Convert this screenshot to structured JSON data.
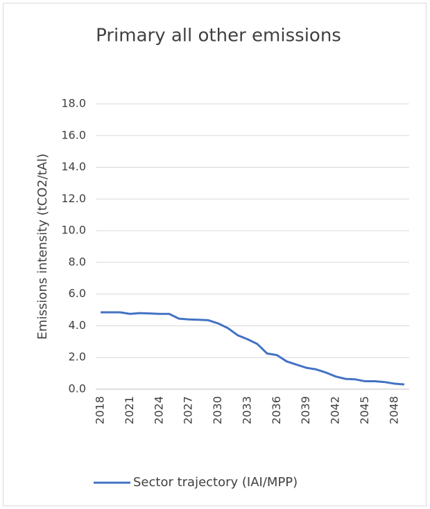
{
  "chart_data": {
    "type": "line",
    "title": "Primary all other emissions",
    "y_label": "Emissions intensity (tCO2/tAl)",
    "categories": [
      "2018",
      null,
      null,
      "2021",
      null,
      null,
      "2024",
      null,
      null,
      "2027",
      null,
      null,
      "2030",
      null,
      null,
      "2033",
      null,
      null,
      "2036",
      null,
      null,
      "2039",
      null,
      null,
      "2042",
      null,
      null,
      "2045",
      null,
      null,
      "2048",
      null
    ],
    "series": [
      {
        "name": "Sector trajectory (IAI/MPP)",
        "color": "#4472c4",
        "values": [
          4.85,
          4.85,
          4.85,
          4.75,
          4.8,
          4.78,
          4.75,
          4.75,
          4.45,
          4.4,
          4.38,
          4.35,
          4.15,
          3.85,
          3.4,
          3.15,
          2.85,
          2.25,
          2.15,
          1.75,
          1.55,
          1.35,
          1.25,
          1.05,
          0.8,
          0.65,
          0.62,
          0.5,
          0.5,
          0.45,
          0.35,
          0.3
        ]
      }
    ],
    "ylim": [
      0,
      18
    ],
    "yticks": [
      {
        "value": 0,
        "label": "0.0"
      },
      {
        "value": 2,
        "label": "2.0"
      },
      {
        "value": 4,
        "label": "4.0"
      },
      {
        "value": 6,
        "label": "6.0"
      },
      {
        "value": 8,
        "label": "8.0"
      },
      {
        "value": 10,
        "label": "10.0"
      },
      {
        "value": 12,
        "label": "12.0"
      },
      {
        "value": 14,
        "label": "14.0"
      },
      {
        "value": 16,
        "label": "16.0"
      },
      {
        "value": 18,
        "label": "18.0"
      }
    ],
    "grid": true,
    "legend": "bottom"
  }
}
